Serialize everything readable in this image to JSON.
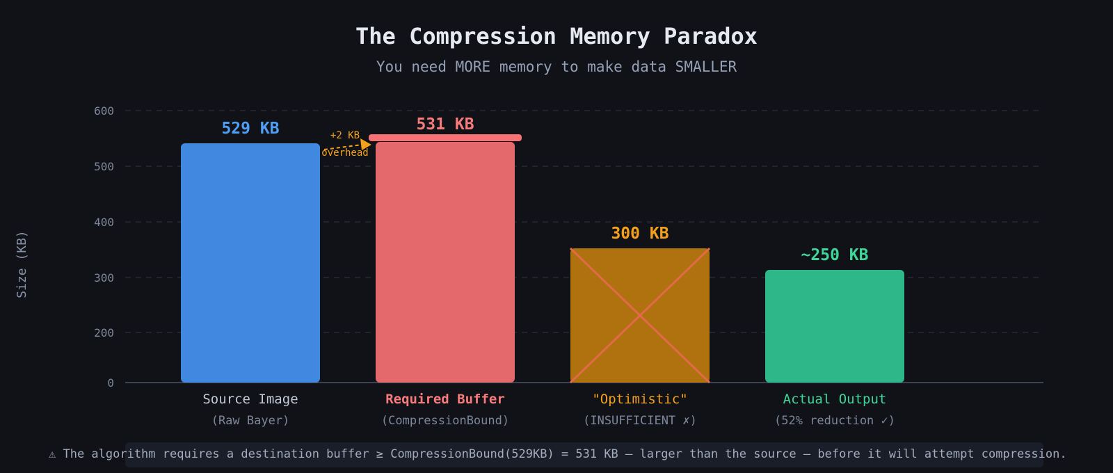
{
  "chart_data": {
    "type": "bar",
    "title": "The Compression Memory Paradox",
    "subtitle": "You need MORE memory to make data SMALLER",
    "ylabel": "Size (KB)",
    "ylim": [
      0,
      600
    ],
    "yticks": [
      0,
      200,
      300,
      400,
      500,
      600
    ],
    "grid": true,
    "bars": [
      {
        "label": "Source Image",
        "sublabel": "(Raw Bayer)",
        "value": 529,
        "value_label": "529 KB",
        "color": "#4189e0",
        "label_color": "#c3cad6",
        "value_color": "#4f9ef5",
        "crossed": false
      },
      {
        "label": "Required Buffer",
        "sublabel": "(CompressionBound)",
        "value": 531,
        "value_label": "531 KB",
        "color": "#e3696c",
        "label_color": "#f77b7b",
        "value_color": "#f77b7b",
        "crossed": false,
        "bold_label": true
      },
      {
        "label": "\"Optimistic\"",
        "sublabel": "(INSUFFICIENT ✗)",
        "value": 300,
        "value_label": "300 KB",
        "color": "#b0720f",
        "label_color": "#f5a21a",
        "value_color": "#f5a21a",
        "crossed": true
      },
      {
        "label": "Actual Output",
        "sublabel": "(52% reduction ✓)",
        "value": 250,
        "value_label": "~250 KB",
        "color": "#2eb789",
        "label_color": "#3fd69a",
        "value_color": "#3fd69a",
        "crossed": false
      }
    ],
    "annotation": {
      "line1": "+2 KB",
      "line2": "overhead"
    }
  },
  "footer": {
    "text": "⚠ The algorithm requires a destination buffer ≥ CompressionBound(529KB) = 531 KB — larger than the source — before it will attempt compression."
  }
}
